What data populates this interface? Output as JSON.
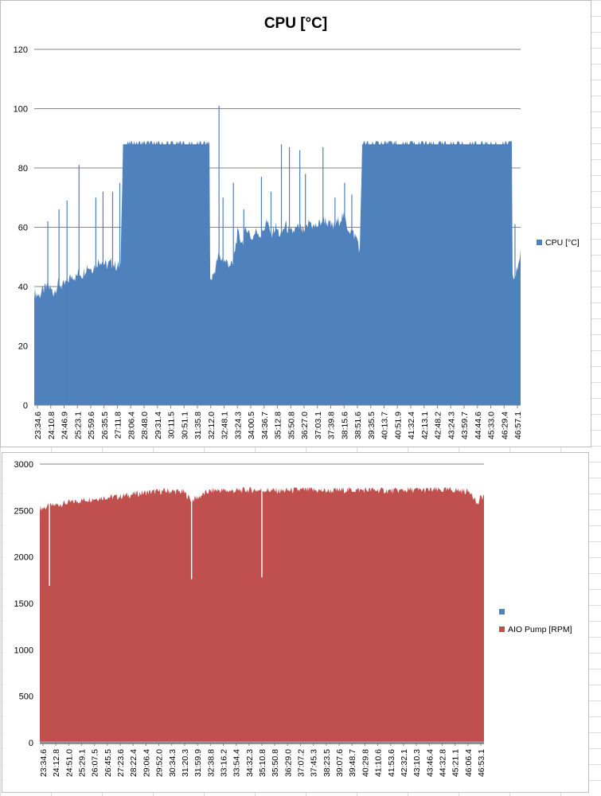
{
  "chart_data": [
    {
      "type": "area",
      "title": "CPU [°C]",
      "xlabel": "",
      "ylabel": "",
      "ylim": [
        0,
        120
      ],
      "yticks": [
        0,
        20,
        40,
        60,
        80,
        100,
        120
      ],
      "grid": true,
      "legend_position": "right",
      "colors": {
        "series": "#4f81bd",
        "grid": "#868686"
      },
      "x_tick_labels": [
        "23:34.6",
        "24:10.8",
        "24:46.9",
        "25:23.1",
        "25:59.6",
        "26:35.5",
        "27:11.8",
        "28:06.4",
        "28:48.0",
        "29:31.4",
        "30:11.5",
        "30:51.1",
        "31:35.8",
        "32:12.0",
        "32:48.1",
        "33:24.3",
        "34:00.5",
        "34:36.7",
        "35:12.8",
        "35:50.8",
        "36:27.0",
        "37:03.1",
        "37:39.8",
        "38:15.6",
        "38:51.6",
        "39:35.5",
        "40:13.7",
        "40:51.9",
        "41:32.4",
        "42:13.1",
        "42:48.2",
        "43:24.3",
        "43:59.7",
        "44:44.6",
        "45:33.0",
        "46:29.4",
        "46:57.1"
      ],
      "series": [
        {
          "name": "CPU [°C]",
          "x_index": [
            0,
            6,
            12,
            18,
            24,
            30,
            36,
            42,
            48,
            52,
            56,
            60,
            66,
            72,
            78,
            84,
            90,
            96,
            102,
            108,
            111,
            114,
            119,
            120,
            140,
            160,
            180,
            200,
            219,
            220,
            224,
            230,
            236,
            242,
            248,
            254,
            260,
            266,
            272,
            278,
            284,
            290,
            296,
            302,
            308,
            314,
            320,
            326,
            332,
            338,
            344,
            350,
            356,
            362,
            368,
            374,
            380,
            386,
            392,
            398,
            404,
            407,
            410,
            430,
            450,
            470,
            490,
            510,
            530,
            550,
            570,
            590,
            597,
            598,
            600,
            602,
            604,
            606,
            608
          ],
          "values": [
            38,
            37,
            39,
            40,
            38,
            41,
            40,
            42,
            44,
            43,
            45,
            44,
            47,
            46,
            48,
            49,
            47,
            48,
            47,
            47,
            88,
            88,
            88,
            88,
            88,
            88,
            88,
            88,
            88,
            42,
            44,
            50,
            49,
            48,
            47,
            58,
            55,
            60,
            56,
            59,
            57,
            62,
            58,
            60,
            57,
            61,
            58,
            59,
            60,
            58,
            62,
            60,
            61,
            63,
            61,
            60,
            62,
            64,
            60,
            58,
            56,
            52,
            88,
            88,
            88,
            88,
            88,
            88,
            88,
            88,
            88,
            88,
            88,
            45,
            42,
            44,
            46,
            49,
            52
          ],
          "spikes": [
            {
              "x_index": 17,
              "value": 62
            },
            {
              "x_index": 31,
              "value": 66
            },
            {
              "x_index": 41,
              "value": 69
            },
            {
              "x_index": 56,
              "value": 81
            },
            {
              "x_index": 77,
              "value": 70
            },
            {
              "x_index": 86,
              "value": 72
            },
            {
              "x_index": 98,
              "value": 72
            },
            {
              "x_index": 107,
              "value": 75
            },
            {
              "x_index": 231,
              "value": 101
            },
            {
              "x_index": 236,
              "value": 70
            },
            {
              "x_index": 249,
              "value": 75
            },
            {
              "x_index": 262,
              "value": 66
            },
            {
              "x_index": 284,
              "value": 77
            },
            {
              "x_index": 296,
              "value": 72
            },
            {
              "x_index": 309,
              "value": 88
            },
            {
              "x_index": 319,
              "value": 87
            },
            {
              "x_index": 332,
              "value": 86
            },
            {
              "x_index": 339,
              "value": 78
            },
            {
              "x_index": 361,
              "value": 87
            },
            {
              "x_index": 376,
              "value": 70
            },
            {
              "x_index": 388,
              "value": 75
            },
            {
              "x_index": 397,
              "value": 71
            },
            {
              "x_index": 452,
              "value": 89
            },
            {
              "x_index": 530,
              "value": 89
            },
            {
              "x_index": 601,
              "value": 61
            }
          ]
        }
      ]
    },
    {
      "type": "area",
      "title": "",
      "xlabel": "",
      "ylabel": "",
      "ylim": [
        0,
        3000
      ],
      "yticks": [
        0,
        500,
        1000,
        1500,
        2000,
        2500,
        3000
      ],
      "grid": true,
      "legend_position": "right",
      "colors": {
        "series": "#c0504d",
        "empty_series": "#4f81bd",
        "grid": "#868686"
      },
      "x_tick_labels": [
        "23:34.6",
        "24:12.8",
        "24:51.0",
        "25:29.1",
        "26:07.5",
        "26:45.5",
        "27:23.6",
        "28:22.4",
        "29:06.4",
        "29:52.0",
        "30:34.3",
        "31:20.3",
        "31:59.9",
        "32:38.8",
        "33:16.2",
        "33:54.4",
        "34:32.3",
        "35:10.8",
        "35:50.8",
        "36:29.0",
        "37:07.2",
        "37:45.3",
        "38:23.5",
        "39:07.6",
        "39:48.7",
        "40:29.8",
        "41:10.6",
        "41:53.6",
        "42:32.1",
        "43:10.3",
        "43:46.4",
        "44:32.8",
        "45:21.1",
        "46:06.4",
        "46:53.1"
      ],
      "series": [
        {
          "name": "",
          "values": []
        },
        {
          "name": "AIO Pump [RPM]",
          "x_index": [
            0,
            20,
            40,
            60,
            80,
            100,
            120,
            140,
            160,
            180,
            190,
            200,
            210,
            220,
            240,
            260,
            280,
            300,
            320,
            340,
            360,
            380,
            400,
            420,
            440,
            460,
            480,
            500,
            520,
            540,
            548,
            552,
            556
          ],
          "values": [
            2520,
            2560,
            2590,
            2620,
            2640,
            2650,
            2680,
            2700,
            2710,
            2700,
            2610,
            2650,
            2700,
            2720,
            2710,
            2720,
            2720,
            2710,
            2720,
            2720,
            2710,
            2720,
            2720,
            2720,
            2710,
            2720,
            2720,
            2720,
            2720,
            2700,
            2560,
            2640,
            2660
          ],
          "dips": [
            {
              "x_index": 12,
              "value": 1690
            },
            {
              "x_index": 190,
              "value": 1760
            },
            {
              "x_index": 278,
              "value": 1780
            }
          ]
        }
      ]
    }
  ],
  "legend": {
    "chart1": [
      {
        "label": "CPU [°C]",
        "color": "#4f81bd"
      }
    ],
    "chart2": [
      {
        "label": "",
        "color": "#4f81bd"
      },
      {
        "label": "AIO Pump [RPM]",
        "color": "#c0504d"
      }
    ]
  }
}
